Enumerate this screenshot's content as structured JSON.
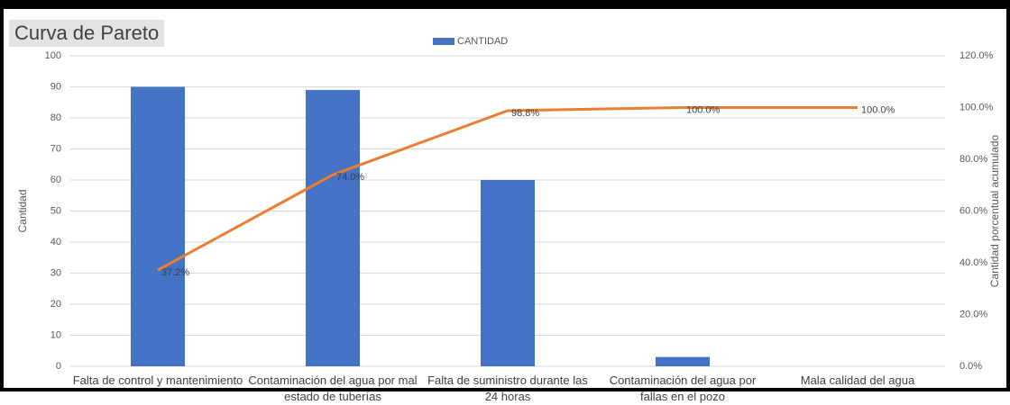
{
  "chart_data": {
    "type": "bar-line",
    "title": "Curva de Pareto",
    "categories": [
      "Falta de control y mantenimiento",
      "Contaminación del agua por mal estado de tuberías",
      "Falta de suministro durante las 24 horas",
      "Contaminación del agua por fallas en el pozo",
      "Mala calidad del agua"
    ],
    "series": [
      {
        "name": "CANTIDAD",
        "type": "bar",
        "color": "#4472c4",
        "values": [
          90,
          89,
          60,
          3,
          0
        ]
      },
      {
        "type": "line",
        "axis": "y2",
        "color": "#ed7d31",
        "values": [
          37.2,
          74.0,
          98.8,
          100.0,
          100.0
        ],
        "value_labels": [
          "37.2%",
          "74.0%",
          "98.8%",
          "100.0%",
          "100.0%"
        ]
      }
    ],
    "ylabel": "Cantidad",
    "y2label": "Cantidad porcentual acumulado",
    "ylim": [
      0,
      100
    ],
    "yticks": [
      0,
      10,
      20,
      30,
      40,
      50,
      60,
      70,
      80,
      90,
      100
    ],
    "y2lim": [
      0,
      120
    ],
    "y2ticks": [
      {
        "value": 0,
        "label": "0.0%"
      },
      {
        "value": 20,
        "label": "20.0%"
      },
      {
        "value": 40,
        "label": "40.0%"
      },
      {
        "value": 60,
        "label": "60.0%"
      },
      {
        "value": 80,
        "label": "80.0%"
      },
      {
        "value": 100,
        "label": "100.0%"
      },
      {
        "value": 120,
        "label": "120.0%"
      }
    ],
    "grid": true,
    "legend": "top"
  }
}
